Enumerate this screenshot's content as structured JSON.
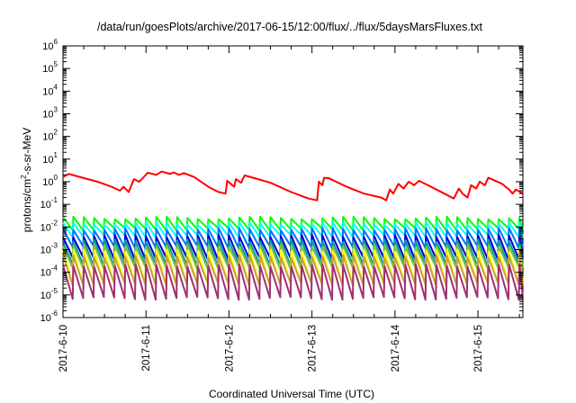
{
  "chart_data": {
    "type": "line",
    "title": "/data/run/goesPlots/archive/2017-06-15/12:00/flux/../flux/5daysMarsFluxes.txt",
    "xlabel": "Coordinated Universal Time (UTC)",
    "ylabel": {
      "before": "protons/cm",
      "sup": "2",
      "after": "-s-sr-MeV"
    },
    "y_scale": "log",
    "ylim": [
      1e-06,
      1000000.0
    ],
    "y_tick_exponents": [
      -6,
      -5,
      -4,
      -3,
      -2,
      -1,
      0,
      1,
      2,
      3,
      4,
      5,
      6
    ],
    "y_tick_base": "10",
    "xlim": [
      "2017-06-10T00:00",
      "2017-06-15T13:00"
    ],
    "x_tick_labels": [
      "2017-6-10",
      "2017-6-11",
      "2017-6-12",
      "2017-6-13",
      "2017-6-14",
      "2017-6-15"
    ],
    "x_ticks": [
      "2017-06-10T00:00",
      "2017-06-11T00:00",
      "2017-06-12T00:00",
      "2017-06-13T00:00",
      "2017-06-14T00:00",
      "2017-06-15T00:00"
    ],
    "grid": false,
    "legend": "none",
    "series": [
      {
        "color": "#ff0000",
        "pattern": "decay-with-jumps",
        "values": [
          [
            "2017-06-10T00:00",
            1.6
          ],
          [
            "2017-06-10T01:40",
            2.2
          ],
          [
            "2017-06-10T05:00",
            1.6
          ],
          [
            "2017-06-10T10:00",
            1.0
          ],
          [
            "2017-06-10T14:00",
            0.6
          ],
          [
            "2017-06-10T16:30",
            0.4
          ],
          [
            "2017-06-10T17:30",
            0.6
          ],
          [
            "2017-06-10T19:00",
            0.35
          ],
          [
            "2017-06-10T20:30",
            1.3
          ],
          [
            "2017-06-10T22:00",
            1.0
          ],
          [
            "2017-06-10T23:00",
            1.4
          ],
          [
            "2017-06-11T00:30",
            2.5
          ],
          [
            "2017-06-11T03:00",
            2.0
          ],
          [
            "2017-06-11T04:30",
            2.8
          ],
          [
            "2017-06-11T07:00",
            2.2
          ],
          [
            "2017-06-11T08:00",
            2.6
          ],
          [
            "2017-06-11T09:30",
            2.0
          ],
          [
            "2017-06-11T11:00",
            2.4
          ],
          [
            "2017-06-11T14:00",
            1.6
          ],
          [
            "2017-06-11T18:00",
            0.6
          ],
          [
            "2017-06-11T21:00",
            0.35
          ],
          [
            "2017-06-11T23:00",
            0.3
          ],
          [
            "2017-06-11T23:30",
            1.1
          ],
          [
            "2017-06-12T01:30",
            0.6
          ],
          [
            "2017-06-12T02:00",
            1.3
          ],
          [
            "2017-06-12T03:30",
            0.9
          ],
          [
            "2017-06-12T04:30",
            1.9
          ],
          [
            "2017-06-12T07:00",
            1.5
          ],
          [
            "2017-06-12T12:00",
            0.9
          ],
          [
            "2017-06-12T18:00",
            0.35
          ],
          [
            "2017-06-12T23:00",
            0.18
          ],
          [
            "2017-06-13T01:30",
            0.15
          ],
          [
            "2017-06-13T02:00",
            1.0
          ],
          [
            "2017-06-13T03:00",
            0.7
          ],
          [
            "2017-06-13T03:30",
            1.5
          ],
          [
            "2017-06-13T05:00",
            1.4
          ],
          [
            "2017-06-13T10:00",
            0.6
          ],
          [
            "2017-06-13T15:00",
            0.3
          ],
          [
            "2017-06-13T20:00",
            0.2
          ],
          [
            "2017-06-13T21:30",
            0.15
          ],
          [
            "2017-06-13T22:30",
            0.45
          ],
          [
            "2017-06-13T23:30",
            0.3
          ],
          [
            "2017-06-14T01:00",
            0.8
          ],
          [
            "2017-06-14T02:30",
            0.5
          ],
          [
            "2017-06-14T04:00",
            1.0
          ],
          [
            "2017-06-14T05:30",
            0.7
          ],
          [
            "2017-06-14T07:00",
            1.1
          ],
          [
            "2017-06-14T12:00",
            0.45
          ],
          [
            "2017-06-14T17:00",
            0.18
          ],
          [
            "2017-06-14T18:30",
            0.5
          ],
          [
            "2017-06-14T19:30",
            0.3
          ],
          [
            "2017-06-14T21:00",
            0.2
          ],
          [
            "2017-06-14T22:00",
            0.7
          ],
          [
            "2017-06-14T23:30",
            0.5
          ],
          [
            "2017-06-15T00:30",
            1.0
          ],
          [
            "2017-06-15T02:00",
            0.7
          ],
          [
            "2017-06-15T03:00",
            1.5
          ],
          [
            "2017-06-15T07:00",
            0.8
          ],
          [
            "2017-06-15T09:00",
            0.45
          ],
          [
            "2017-06-15T10:00",
            0.3
          ],
          [
            "2017-06-15T11:00",
            0.45
          ],
          [
            "2017-06-15T13:00",
            0.3
          ]
        ]
      },
      {
        "color": "#00ff00",
        "pattern": "sawtooth",
        "period_hours": 3,
        "peak": 0.025,
        "trough": 0.008
      },
      {
        "color": "#00ffff",
        "pattern": "sawtooth",
        "period_hours": 3,
        "peak": 0.014,
        "trough": 0.004
      },
      {
        "color": "#0073ff",
        "pattern": "sawtooth",
        "period_hours": 3,
        "peak": 0.008,
        "trough": 0.0013
      },
      {
        "color": "#0000cc",
        "pattern": "sawtooth",
        "period_hours": 3,
        "peak": 0.004,
        "trough": 0.0004
      },
      {
        "color": "#00a0a0",
        "pattern": "sawtooth",
        "period_hours": 3,
        "peak": 0.0025,
        "trough": 0.0002
      },
      {
        "color": "#80c040",
        "pattern": "sawtooth",
        "period_hours": 3,
        "peak": 0.0015,
        "trough": 0.00015
      },
      {
        "color": "#ffff00",
        "pattern": "sawtooth",
        "period_hours": 3,
        "peak": 0.0009,
        "trough": 3e-05
      },
      {
        "color": "#c8a040",
        "pattern": "sawtooth",
        "period_hours": 3,
        "peak": 0.0005,
        "trough": 3e-05
      },
      {
        "color": "#a03070",
        "pattern": "sawtooth",
        "period_hours": 3,
        "peak": 0.0002,
        "trough": 7e-06
      }
    ]
  }
}
